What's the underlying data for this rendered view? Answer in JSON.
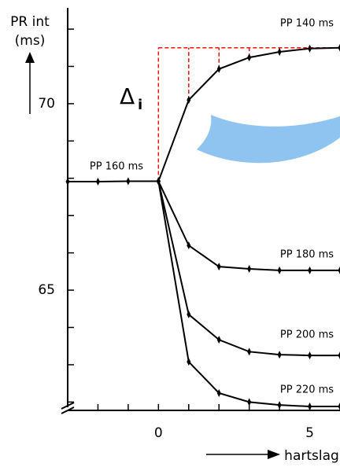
{
  "chart_data": {
    "type": "line",
    "y_label": "PR int",
    "y_unit": "(ms)",
    "x_label": "hartslag",
    "annotation": {
      "text": "Δ",
      "subscript": "i",
      "color": "#ee1111"
    },
    "x": [
      -3,
      -2,
      -1,
      0,
      1,
      2,
      3,
      4,
      5,
      6
    ],
    "series": [
      {
        "name": "PP 160 ms",
        "color": "#000000",
        "values": [
          67.91,
          67.91,
          67.92,
          67.92,
          null,
          null,
          null,
          null,
          null,
          null
        ]
      },
      {
        "name": "PP 140 ms",
        "color": "#000000",
        "values": [
          null,
          null,
          null,
          67.92,
          70.1,
          70.93,
          71.24,
          71.39,
          71.48,
          71.5
        ]
      },
      {
        "name": "PP 180 ms",
        "color": "#000000",
        "values": [
          null,
          null,
          null,
          67.92,
          66.2,
          65.63,
          65.57,
          65.53,
          65.53,
          65.53
        ]
      },
      {
        "name": "PP 200 ms",
        "color": "#000000",
        "values": [
          null,
          null,
          null,
          67.92,
          64.35,
          63.67,
          63.35,
          63.27,
          63.25,
          63.25
        ]
      },
      {
        "name": "PP 220 ms",
        "color": "#000000",
        "values": [
          null,
          null,
          null,
          67.92,
          63.08,
          62.24,
          62.0,
          61.92,
          61.88,
          61.88
        ]
      }
    ],
    "xlim": [
      -3,
      6
    ],
    "ylim": [
      61.86,
      72.57
    ],
    "xticks": [
      0,
      5
    ],
    "yticks": [
      65,
      70
    ],
    "xminorticks": [
      -2,
      -1,
      1,
      2,
      3,
      4
    ],
    "yminorticks": [
      62,
      63,
      64,
      66,
      67,
      68,
      69,
      71,
      72
    ]
  }
}
